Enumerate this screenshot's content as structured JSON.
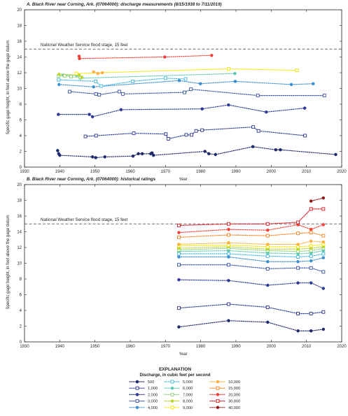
{
  "chart_data": [
    {
      "type": "line",
      "title": "A. Black River near Corning, Ark. (07064000): discharge measurements (8/15/1938 to 7/11/2019)",
      "xlabel": "Year",
      "ylabel": "Specific gage height, in feet above the gage datum",
      "xlim": [
        1930,
        2020
      ],
      "ylim": [
        0,
        20
      ],
      "xticks": [
        "1930",
        "1940",
        "1950",
        "1960",
        "1970",
        "1980",
        "1990",
        "2000",
        "2010",
        "2020"
      ],
      "yticks": [
        "0",
        "2",
        "4",
        "6",
        "8",
        "10",
        "12",
        "14",
        "16",
        "18",
        "20"
      ],
      "reference_line": {
        "y": 15,
        "label": "National Weather Service flood stage, 15 feet"
      },
      "series": [
        {
          "name": "500",
          "color": "#1f2a6b",
          "marker": "circle-filled",
          "points": [
            [
              1939.4,
              2.1
            ],
            [
              1939.7,
              1.7
            ],
            [
              1940.0,
              1.5
            ],
            [
              1949.3,
              1.3
            ],
            [
              1950.2,
              1.2
            ],
            [
              1952.8,
              1.3
            ],
            [
              1960.8,
              1.4
            ],
            [
              1962.3,
              1.7
            ],
            [
              1963.4,
              1.7
            ],
            [
              1965.8,
              1.7
            ],
            [
              1966.2,
              1.8
            ],
            [
              1966.6,
              1.5
            ],
            [
              1981.2,
              2.0
            ],
            [
              1982.3,
              1.7
            ],
            [
              1984.2,
              1.6
            ],
            [
              1994.8,
              2.6
            ],
            [
              2001.3,
              2.2
            ],
            [
              2002.6,
              2.2
            ],
            [
              2018.3,
              1.6
            ]
          ]
        },
        {
          "name": "1,000",
          "color": "#2b3990",
          "marker": "square-open",
          "points": [
            [
              1947.3,
              3.9
            ],
            [
              1950.3,
              4.0
            ],
            [
              1961.0,
              4.3
            ],
            [
              1970.1,
              4.2
            ],
            [
              1970.8,
              3.6
            ],
            [
              1975.9,
              4.1
            ],
            [
              1977.4,
              4.1
            ],
            [
              1978.7,
              4.6
            ],
            [
              1980.4,
              4.7
            ],
            [
              1994.9,
              5.1
            ],
            [
              1996.4,
              4.6
            ],
            [
              2009.6,
              4.0
            ]
          ]
        },
        {
          "name": "2,000",
          "color": "#2e3a94",
          "marker": "circle-filled",
          "points": [
            [
              1939.6,
              6.7
            ],
            [
              1948.4,
              6.7
            ],
            [
              1949.3,
              6.4
            ],
            [
              1957.4,
              7.3
            ],
            [
              1980.4,
              7.4
            ],
            [
              1987.9,
              7.9
            ],
            [
              1998.6,
              7.0
            ],
            [
              2009.5,
              7.5
            ]
          ]
        },
        {
          "name": "3,000",
          "color": "#3753a4",
          "marker": "square-open",
          "points": [
            [
              1942.8,
              9.6
            ],
            [
              1950.3,
              9.3
            ],
            [
              1951.2,
              9.2
            ],
            [
              1956.9,
              9.6
            ],
            [
              1957.9,
              9.3
            ],
            [
              1975.4,
              9.5
            ],
            [
              1977.2,
              9.9
            ],
            [
              1996.2,
              9.1
            ],
            [
              2015.1,
              9.1
            ]
          ]
        },
        {
          "name": "4,000",
          "color": "#3d8fcf",
          "marker": "circle-filled",
          "points": [
            [
              1939.8,
              10.5
            ],
            [
              1949.6,
              10.2
            ],
            [
              1973.9,
              11.0
            ],
            [
              1979.9,
              10.6
            ],
            [
              1989.8,
              10.9
            ],
            [
              2005.7,
              10.5
            ],
            [
              2011.9,
              10.6
            ]
          ]
        },
        {
          "name": "5,000",
          "color": "#45b8e0",
          "marker": "square-open",
          "points": [
            [
              1939.7,
              11.1
            ],
            [
              1950.2,
              10.9
            ],
            [
              1951.8,
              10.3
            ],
            [
              1960.7,
              10.9
            ],
            [
              1970.0,
              11.3
            ],
            [
              1975.7,
              11.2
            ]
          ]
        },
        {
          "name": "6,000",
          "color": "#5cc8b4",
          "marker": "circle-filled",
          "points": [
            [
              1941.0,
              11.7
            ],
            [
              1944.7,
              11.7
            ],
            [
              1945.8,
              11.3
            ],
            [
              1989.7,
              11.9
            ]
          ]
        },
        {
          "name": "7,000",
          "color": "#8fd17f",
          "marker": "square-open",
          "points": [
            [
              1939.7,
              11.6
            ],
            [
              1941.4,
              11.6
            ],
            [
              1943.2,
              11.5
            ],
            [
              1945.9,
              11.4
            ]
          ]
        },
        {
          "name": "8,000",
          "color": "#b8d432",
          "marker": "circle-filled",
          "points": [
            [
              1939.8,
              11.8
            ],
            [
              1945.5,
              11.7
            ],
            [
              1946.3,
              11.4
            ]
          ]
        },
        {
          "name": "9,000",
          "color": "#f5e400",
          "marker": "square-open",
          "points": [
            [
              1944.7,
              11.9
            ],
            [
              1987.9,
              12.5
            ],
            [
              2007.3,
              12.3
            ]
          ]
        },
        {
          "name": "10,000",
          "color": "#fbb040",
          "marker": "circle-filled",
          "points": [
            [
              1949.6,
              12.1
            ],
            [
              1950.8,
              11.9
            ],
            [
              1952.1,
              12.0
            ]
          ]
        },
        {
          "name": "20,000",
          "color": "#ef4136",
          "marker": "circle-filled",
          "points": [
            [
              1945.5,
              14.1
            ],
            [
              1945.6,
              13.8
            ],
            [
              1969.8,
              14.0
            ],
            [
              1983.1,
              14.2
            ]
          ]
        }
      ]
    },
    {
      "type": "line",
      "title": "B. Black River near Corning, Ark. (07064000): historical ratings",
      "xlabel": "Year",
      "ylabel": "Specific gage height, in feet above the gage datum",
      "xlim": [
        1930,
        2020
      ],
      "ylim": [
        0,
        20
      ],
      "xticks": [
        "1930",
        "1940",
        "1950",
        "1960",
        "1970",
        "1980",
        "1990",
        "2000",
        "2010",
        "2020"
      ],
      "yticks": [
        "0",
        "2",
        "4",
        "6",
        "8",
        "10",
        "12",
        "14",
        "16",
        "18",
        "20"
      ],
      "reference_line": {
        "y": 15,
        "label": "National Weather Service flood stage, 15 feet"
      },
      "x": [
        1973.8,
        1987.9,
        1999.0,
        2007.6,
        2011.3,
        2014.8
      ],
      "series": [
        {
          "name": "500",
          "color": "#1f2a6b",
          "marker": "circle-filled",
          "values": [
            1.9,
            2.7,
            2.5,
            1.4,
            1.4,
            1.6
          ]
        },
        {
          "name": "1,000",
          "color": "#2b3990",
          "marker": "square-open",
          "values": [
            4.3,
            4.8,
            4.4,
            3.6,
            3.6,
            3.8
          ]
        },
        {
          "name": "2,000",
          "color": "#2e3a94",
          "marker": "circle-filled",
          "values": [
            7.9,
            7.8,
            7.2,
            7.5,
            7.5,
            6.8
          ]
        },
        {
          "name": "3,000",
          "color": "#3753a4",
          "marker": "square-open",
          "values": [
            9.8,
            9.8,
            9.3,
            9.4,
            9.4,
            8.9
          ]
        },
        {
          "name": "4,000",
          "color": "#3d8fcf",
          "marker": "circle-filled",
          "values": [
            10.8,
            10.8,
            10.2,
            10.2,
            10.3,
            10.7
          ]
        },
        {
          "name": "5,000",
          "color": "#45b8e0",
          "marker": "square-open",
          "values": [
            11.2,
            11.2,
            10.9,
            10.8,
            10.9,
            11.2
          ]
        },
        {
          "name": "6,000",
          "color": "#5cc8b4",
          "marker": "circle-filled",
          "values": [
            11.5,
            11.6,
            11.3,
            11.2,
            11.3,
            11.6
          ]
        },
        {
          "name": "7,000",
          "color": "#8fd17f",
          "marker": "square-open",
          "values": [
            11.7,
            11.9,
            11.6,
            11.5,
            11.6,
            11.9
          ]
        },
        {
          "name": "8,000",
          "color": "#b8d432",
          "marker": "circle-filled",
          "values": [
            11.9,
            12.1,
            11.8,
            11.8,
            11.9,
            12.1
          ]
        },
        {
          "name": "9,000",
          "color": "#f5e400",
          "marker": "square-open",
          "values": [
            12.2,
            12.3,
            12.1,
            12.1,
            12.2,
            12.4
          ]
        },
        {
          "name": "10,000",
          "color": "#fbb040",
          "marker": "circle-filled",
          "values": [
            12.4,
            12.6,
            12.4,
            12.4,
            12.8,
            12.7
          ]
        },
        {
          "name": "15,000",
          "color": "#f58220",
          "marker": "square-open",
          "values": [
            13.3,
            13.6,
            13.5,
            13.8,
            13.9,
            13.5
          ]
        },
        {
          "name": "20,000",
          "color": "#ef4136",
          "marker": "circle-filled",
          "values": [
            13.9,
            14.3,
            14.2,
            14.9,
            14.3,
            14.9
          ]
        },
        {
          "name": "30,000",
          "color": "#d7191c",
          "marker": "square-open",
          "values": [
            14.8,
            15.0,
            15.0,
            15.2,
            16.9,
            16.9
          ]
        },
        {
          "name": "40,000",
          "color": "#8b1a1a",
          "marker": "circle-filled",
          "values": [
            null,
            null,
            null,
            null,
            17.9,
            18.3
          ]
        }
      ]
    }
  ],
  "explanation": {
    "title": "EXPLANATION",
    "subtitle": "Discharge, in cubic feet per second",
    "columns": [
      [
        "500",
        "1,000",
        "2,000",
        "3,000",
        "4,000"
      ],
      [
        "5,000",
        "6,000",
        "7,000",
        "8,000",
        "9,000"
      ],
      [
        "10,000",
        "15,000",
        "20,000",
        "30,000",
        "40,000"
      ]
    ]
  }
}
